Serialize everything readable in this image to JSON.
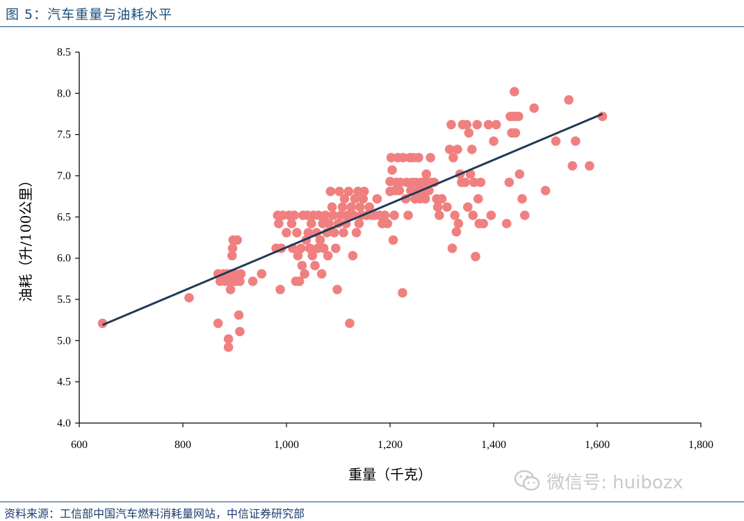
{
  "figure": {
    "title": "图 5：汽车重量与油耗水平",
    "source": "资料来源：工信部中国汽车燃料消耗量网站，中信证券研究部",
    "watermark_text": "微信号: huibozx",
    "watermark_icon": "wechat-icon"
  },
  "chart_data": {
    "type": "scatter",
    "title": "",
    "xlabel": "重量（千克）",
    "ylabel": "油耗（升/100公里）",
    "xlim": [
      600,
      1800
    ],
    "ylim": [
      4.0,
      8.5
    ],
    "xticks": [
      600,
      800,
      1000,
      1200,
      1400,
      1600,
      1800
    ],
    "xtick_labels": [
      "600",
      "800",
      "1,000",
      "1,200",
      "1,400",
      "1,600",
      "1,800"
    ],
    "yticks": [
      4.0,
      4.5,
      5.0,
      5.5,
      6.0,
      6.5,
      7.0,
      7.5,
      8.0,
      8.5
    ],
    "ytick_labels": [
      "4.0",
      "4.5",
      "5.0",
      "5.5",
      "6.0",
      "6.5",
      "7.0",
      "7.5",
      "8.0",
      "8.5"
    ],
    "grid": false,
    "point_color": "#f08080",
    "trendline_color": "#1f3a55",
    "trendline": {
      "x": [
        645,
        1610
      ],
      "y": [
        5.19,
        7.75
      ]
    },
    "series": [
      {
        "points": [
          [
            645,
            5.21
          ],
          [
            812,
            5.52
          ],
          [
            868,
            5.21
          ],
          [
            868,
            5.81
          ],
          [
            872,
            5.72
          ],
          [
            878,
            5.81
          ],
          [
            882,
            5.72
          ],
          [
            885,
            5.81
          ],
          [
            888,
            5.02
          ],
          [
            888,
            4.92
          ],
          [
            890,
            5.72
          ],
          [
            892,
            5.62
          ],
          [
            893,
            5.81
          ],
          [
            895,
            6.03
          ],
          [
            896,
            6.12
          ],
          [
            897,
            6.22
          ],
          [
            898,
            5.72
          ],
          [
            900,
            5.81
          ],
          [
            903,
            5.72
          ],
          [
            905,
            6.22
          ],
          [
            908,
            5.31
          ],
          [
            910,
            5.11
          ],
          [
            910,
            5.72
          ],
          [
            912,
            5.81
          ],
          [
            935,
            5.72
          ],
          [
            952,
            5.81
          ],
          [
            980,
            6.12
          ],
          [
            983,
            6.52
          ],
          [
            985,
            6.42
          ],
          [
            988,
            5.62
          ],
          [
            990,
            6.12
          ],
          [
            993,
            6.52
          ],
          [
            1000,
            6.31
          ],
          [
            1005,
            6.52
          ],
          [
            1010,
            6.42
          ],
          [
            1012,
            6.12
          ],
          [
            1015,
            6.52
          ],
          [
            1018,
            5.72
          ],
          [
            1020,
            6.31
          ],
          [
            1022,
            6.03
          ],
          [
            1025,
            5.72
          ],
          [
            1028,
            6.12
          ],
          [
            1030,
            5.91
          ],
          [
            1032,
            6.52
          ],
          [
            1035,
            5.81
          ],
          [
            1038,
            6.22
          ],
          [
            1040,
            6.52
          ],
          [
            1042,
            6.31
          ],
          [
            1045,
            6.12
          ],
          [
            1048,
            6.42
          ],
          [
            1050,
            6.03
          ],
          [
            1052,
            6.52
          ],
          [
            1055,
            5.91
          ],
          [
            1058,
            6.31
          ],
          [
            1060,
            6.12
          ],
          [
            1062,
            6.52
          ],
          [
            1065,
            6.22
          ],
          [
            1068,
            5.81
          ],
          [
            1070,
            6.42
          ],
          [
            1072,
            6.12
          ],
          [
            1075,
            6.52
          ],
          [
            1078,
            6.31
          ],
          [
            1080,
            6.03
          ],
          [
            1082,
            6.42
          ],
          [
            1085,
            6.81
          ],
          [
            1088,
            6.62
          ],
          [
            1090,
            6.52
          ],
          [
            1092,
            6.31
          ],
          [
            1095,
            6.12
          ],
          [
            1098,
            5.62
          ],
          [
            1100,
            6.42
          ],
          [
            1102,
            6.81
          ],
          [
            1105,
            6.52
          ],
          [
            1108,
            6.62
          ],
          [
            1110,
            6.31
          ],
          [
            1112,
            6.72
          ],
          [
            1115,
            6.42
          ],
          [
            1118,
            6.52
          ],
          [
            1120,
            6.81
          ],
          [
            1122,
            5.21
          ],
          [
            1125,
            6.62
          ],
          [
            1128,
            6.03
          ],
          [
            1130,
            6.52
          ],
          [
            1132,
            6.72
          ],
          [
            1135,
            6.31
          ],
          [
            1138,
            6.81
          ],
          [
            1140,
            6.42
          ],
          [
            1142,
            6.62
          ],
          [
            1145,
            6.52
          ],
          [
            1148,
            6.72
          ],
          [
            1150,
            6.81
          ],
          [
            1155,
            6.52
          ],
          [
            1160,
            6.62
          ],
          [
            1165,
            6.52
          ],
          [
            1170,
            6.52
          ],
          [
            1175,
            6.72
          ],
          [
            1180,
            6.52
          ],
          [
            1185,
            6.42
          ],
          [
            1190,
            6.52
          ],
          [
            1195,
            6.42
          ],
          [
            1200,
            6.81
          ],
          [
            1200,
            6.93
          ],
          [
            1202,
            7.22
          ],
          [
            1204,
            7.07
          ],
          [
            1206,
            6.22
          ],
          [
            1208,
            6.52
          ],
          [
            1210,
            6.82
          ],
          [
            1212,
            6.92
          ],
          [
            1215,
            7.22
          ],
          [
            1218,
            6.82
          ],
          [
            1220,
            6.92
          ],
          [
            1224,
            5.58
          ],
          [
            1225,
            7.22
          ],
          [
            1230,
            6.72
          ],
          [
            1232,
            6.92
          ],
          [
            1235,
            6.52
          ],
          [
            1238,
            7.22
          ],
          [
            1240,
            6.82
          ],
          [
            1242,
            6.92
          ],
          [
            1245,
            7.22
          ],
          [
            1248,
            6.72
          ],
          [
            1250,
            6.92
          ],
          [
            1252,
            6.82
          ],
          [
            1255,
            7.22
          ],
          [
            1258,
            6.72
          ],
          [
            1260,
            6.92
          ],
          [
            1262,
            6.82
          ],
          [
            1265,
            6.92
          ],
          [
            1268,
            6.72
          ],
          [
            1270,
            7.02
          ],
          [
            1272,
            6.92
          ],
          [
            1275,
            6.82
          ],
          [
            1278,
            7.22
          ],
          [
            1280,
            6.92
          ],
          [
            1285,
            6.92
          ],
          [
            1290,
            6.72
          ],
          [
            1292,
            6.62
          ],
          [
            1295,
            6.52
          ],
          [
            1300,
            6.72
          ],
          [
            1310,
            6.62
          ],
          [
            1315,
            7.32
          ],
          [
            1318,
            7.62
          ],
          [
            1320,
            6.12
          ],
          [
            1322,
            7.22
          ],
          [
            1325,
            6.52
          ],
          [
            1328,
            6.32
          ],
          [
            1330,
            7.32
          ],
          [
            1332,
            6.42
          ],
          [
            1335,
            7.02
          ],
          [
            1338,
            6.92
          ],
          [
            1340,
            7.62
          ],
          [
            1345,
            6.92
          ],
          [
            1348,
            7.62
          ],
          [
            1350,
            6.62
          ],
          [
            1352,
            7.52
          ],
          [
            1355,
            7.02
          ],
          [
            1358,
            7.32
          ],
          [
            1360,
            6.52
          ],
          [
            1362,
            6.92
          ],
          [
            1365,
            6.02
          ],
          [
            1368,
            7.62
          ],
          [
            1370,
            6.72
          ],
          [
            1372,
            6.42
          ],
          [
            1375,
            6.92
          ],
          [
            1380,
            6.42
          ],
          [
            1390,
            7.62
          ],
          [
            1395,
            6.52
          ],
          [
            1400,
            7.42
          ],
          [
            1405,
            7.62
          ],
          [
            1425,
            6.42
          ],
          [
            1430,
            6.92
          ],
          [
            1432,
            7.72
          ],
          [
            1435,
            7.52
          ],
          [
            1438,
            7.72
          ],
          [
            1440,
            8.02
          ],
          [
            1442,
            7.52
          ],
          [
            1445,
            7.72
          ],
          [
            1448,
            7.72
          ],
          [
            1450,
            7.02
          ],
          [
            1455,
            6.72
          ],
          [
            1460,
            6.52
          ],
          [
            1478,
            7.82
          ],
          [
            1500,
            6.82
          ],
          [
            1520,
            7.42
          ],
          [
            1545,
            7.92
          ],
          [
            1552,
            7.12
          ],
          [
            1558,
            7.42
          ],
          [
            1585,
            7.12
          ],
          [
            1610,
            7.72
          ]
        ]
      }
    ]
  }
}
